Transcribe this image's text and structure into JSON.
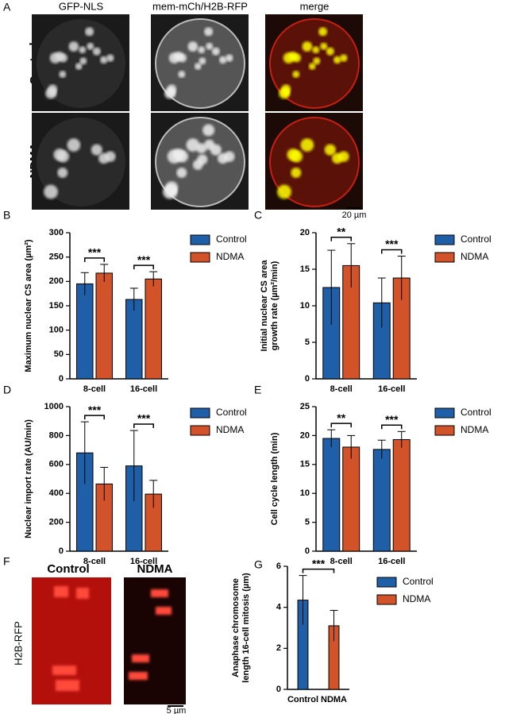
{
  "figure": {
    "panel_A": {
      "label": "A",
      "columns": [
        "GFP-NLS",
        "mem-mCh/H2B-RFP",
        "merge"
      ],
      "rows": [
        "Control",
        "NDMA"
      ],
      "scale_bar": "20 µm"
    },
    "panel_F": {
      "label": "F",
      "columns": [
        "Control",
        "NDMA"
      ],
      "row_label": "H2B-RFP",
      "scale_bar": "5 µm"
    }
  },
  "chart_data": [
    {
      "type": "bar",
      "label": "B",
      "ylabel": [
        "Maximum nuclear CS area (µm²)"
      ],
      "categories": [
        "8-cell",
        "16-cell"
      ],
      "series": [
        {
          "name": "Control",
          "color": "#1f5fa8",
          "values": [
            195,
            163
          ],
          "errors": [
            23,
            23
          ]
        },
        {
          "name": "NDMA",
          "color": "#d2522a",
          "values": [
            217,
            205
          ],
          "errors": [
            18,
            15
          ]
        }
      ],
      "ylim": [
        0,
        300
      ],
      "yticks": [
        0,
        50,
        100,
        150,
        200,
        250,
        300
      ],
      "annotations": [
        "***",
        "***"
      ],
      "legend": "right"
    },
    {
      "type": "bar",
      "label": "C",
      "ylabel": [
        "Initial nuclear CS area",
        "growth rate (µm²/min)"
      ],
      "categories": [
        "8-cell",
        "16-cell"
      ],
      "series": [
        {
          "name": "Control",
          "color": "#1f5fa8",
          "values": [
            12.5,
            10.4
          ],
          "errors": [
            5.1,
            3.4
          ]
        },
        {
          "name": "NDMA",
          "color": "#d2522a",
          "values": [
            15.5,
            13.8
          ],
          "errors": [
            3.0,
            3.0
          ]
        }
      ],
      "ylim": [
        0,
        20
      ],
      "yticks": [
        0,
        5,
        10,
        15,
        20
      ],
      "annotations": [
        "**",
        "***"
      ],
      "legend": "right"
    },
    {
      "type": "bar",
      "label": "D",
      "ylabel": [
        "Nuclear import rate (AU/min)"
      ],
      "categories": [
        "8-cell",
        "16-cell"
      ],
      "series": [
        {
          "name": "Control",
          "color": "#1f5fa8",
          "values": [
            680,
            590
          ],
          "errors": [
            215,
            245
          ]
        },
        {
          "name": "NDMA",
          "color": "#d2522a",
          "values": [
            465,
            395
          ],
          "errors": [
            115,
            95
          ]
        }
      ],
      "ylim": [
        0,
        1000
      ],
      "yticks": [
        0,
        200,
        400,
        600,
        800,
        1000
      ],
      "annotations": [
        "***",
        "***"
      ],
      "legend": "right"
    },
    {
      "type": "bar",
      "label": "E",
      "ylabel": [
        "Cell cycle length (min)"
      ],
      "categories": [
        "8-cell",
        "16-cell"
      ],
      "series": [
        {
          "name": "Control",
          "color": "#1f5fa8",
          "values": [
            19.5,
            17.6
          ],
          "errors": [
            1.5,
            1.6
          ]
        },
        {
          "name": "NDMA",
          "color": "#d2522a",
          "values": [
            18.0,
            19.3
          ],
          "errors": [
            2.0,
            1.4
          ]
        }
      ],
      "ylim": [
        0,
        25
      ],
      "yticks": [
        0,
        5,
        10,
        15,
        20,
        25
      ],
      "annotations": [
        "**",
        "***"
      ],
      "legend": "right"
    },
    {
      "type": "bar",
      "label": "G",
      "ylabel": [
        "Anaphase chromosome",
        "length 16-cell mitosis (µm)"
      ],
      "categories": [
        "Control",
        "NDMA"
      ],
      "series": [
        {
          "name": "Control",
          "color": "#1f5fa8",
          "values": [
            4.35,
            null
          ],
          "errors": [
            1.2,
            null
          ]
        },
        {
          "name": "NDMA",
          "color": "#d2522a",
          "values": [
            null,
            3.1
          ],
          "errors": [
            null,
            0.75
          ]
        }
      ],
      "ylim": [
        0,
        6
      ],
      "yticks": [
        0,
        2,
        4,
        6
      ],
      "annotations": [
        "***"
      ],
      "legend": "right"
    }
  ]
}
